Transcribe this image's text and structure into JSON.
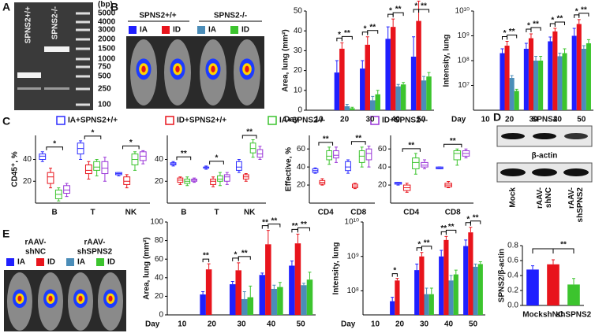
{
  "panel_labels": [
    "A",
    "B",
    "C",
    "D",
    "E"
  ],
  "gel": {
    "lanes": [
      "SPNS2+/+",
      "SPNS2-/-"
    ],
    "unit": "(bp)",
    "ladder": [
      "5000",
      "4000",
      "3000",
      "2000",
      "1500",
      "1000",
      "750",
      "500",
      "250",
      "100"
    ]
  },
  "imaging_b": {
    "groups": [
      "SPNS2+/+",
      "SPNS2-/-"
    ]
  },
  "imaging_e": {
    "groups": [
      [
        "rAAV-",
        "shNC"
      ],
      [
        "rAAV-",
        "shSPNS2"
      ]
    ]
  },
  "blot": {
    "title": "SPNS2",
    "loading": "β-actin",
    "lanes": [
      [
        "Mock"
      ],
      [
        "rAAV-",
        "shNC"
      ],
      [
        "rAAV-",
        "shSPNS2"
      ]
    ]
  },
  "chart_data": [
    {
      "type": "bar",
      "ylabel": "Area, lung (mm²)",
      "xlabel": "Day",
      "categories": [
        "10",
        "20",
        "30",
        "40",
        "50"
      ],
      "ylim": [
        0,
        50
      ],
      "yticks": [
        0,
        10,
        20,
        30,
        40,
        50
      ],
      "series": [
        {
          "name": "IA",
          "color": "#1f1fff",
          "values": [
            null,
            19,
            21,
            36,
            27
          ],
          "errors": [
            null,
            6,
            4,
            6,
            10
          ]
        },
        {
          "name": "ID",
          "color": "#e8141c",
          "values": [
            null,
            31,
            33,
            42,
            45
          ],
          "errors": [
            null,
            3,
            4,
            4,
            10
          ]
        },
        {
          "name": "IA",
          "color": "#4b8db8",
          "values": [
            null,
            2,
            5,
            12,
            15
          ],
          "errors": [
            null,
            1,
            2,
            1,
            2
          ]
        },
        {
          "name": "ID",
          "color": "#3cc42e",
          "values": [
            null,
            1,
            8,
            13,
            17
          ],
          "errors": [
            null,
            0.5,
            2,
            1,
            2
          ]
        }
      ],
      "significance": [
        [
          null,
          null
        ],
        [
          "*",
          "**"
        ],
        [
          "*",
          "**"
        ],
        [
          "*",
          "**"
        ],
        [
          "*",
          "**"
        ]
      ]
    },
    {
      "type": "bar",
      "ylabel": "Intensity, lung",
      "xlabel": "Day",
      "categories": [
        "10",
        "20",
        "30",
        "40",
        "50"
      ],
      "log_y": true,
      "ylim": [
        1000000,
        10000000000
      ],
      "yticks": [
        {
          "value": 10000000,
          "label": "10⁷"
        },
        {
          "value": 100000000,
          "label": "10⁸"
        },
        {
          "value": 1000000000,
          "label": "10⁹"
        },
        {
          "value": 10000000000,
          "label": "10¹⁰"
        }
      ],
      "series": [
        {
          "color": "#1f1fff",
          "values": [
            null,
            200000000,
            300000000,
            600000000,
            1000000000
          ],
          "errors": [
            null,
            100000000,
            200000000,
            300000000,
            1000000000
          ]
        },
        {
          "color": "#e8141c",
          "values": [
            null,
            400000000,
            800000000,
            1500000000,
            3000000000
          ],
          "errors": [
            null,
            200000000,
            400000000,
            500000000,
            1500000000
          ]
        },
        {
          "color": "#4b8db8",
          "values": [
            null,
            20000000,
            100000000,
            150000000,
            300000000
          ],
          "errors": [
            null,
            5000000,
            50000000,
            50000000,
            100000000
          ]
        },
        {
          "color": "#3cc42e",
          "values": [
            null,
            6000000,
            100000000,
            200000000,
            500000000
          ],
          "errors": [
            null,
            1000000,
            50000000,
            100000000,
            200000000
          ]
        }
      ],
      "significance": [
        [
          null,
          null
        ],
        [
          "*",
          "**"
        ],
        [
          "*",
          "**"
        ],
        [
          "*",
          "**"
        ],
        [
          "*",
          "**"
        ]
      ]
    },
    {
      "type": "box",
      "ylabel": "CD45⁺, %",
      "categories": [
        "B",
        "T",
        "NK"
      ],
      "ylim": [
        0,
        62
      ],
      "yticks": [
        20,
        40
      ],
      "series": [
        {
          "name": "IA+SPNS2+/+",
          "color": "#2b2bff",
          "values": [
            [
              38,
              40,
              43,
              45,
              47
            ],
            [
              40,
              45,
              50,
              55,
              57
            ],
            [
              25,
              26,
              27,
              28,
              28
            ]
          ]
        },
        {
          "name": "ID+SPNS2+/+",
          "color": "#e8141c",
          "values": [
            [
              14,
              18,
              24,
              28,
              32
            ],
            [
              22,
              27,
              30,
              35,
              38
            ],
            [
              14,
              17,
              20,
              24,
              26
            ]
          ]
        },
        {
          "name": "IA+SPNS2-/-",
          "color": "#3cc42e",
          "values": [
            [
              2,
              4,
              8,
              12,
              14
            ],
            [
              25,
              30,
              33,
              38,
              40
            ],
            [
              30,
              35,
              40,
              45,
              47
            ]
          ]
        },
        {
          "name": "ID+SPNS2-/-",
          "color": "#9a35d8",
          "values": [
            [
              6,
              9,
              12,
              16,
              18
            ],
            [
              20,
              27,
              32,
              38,
              42
            ],
            [
              36,
              39,
              43,
              47,
              48
            ]
          ]
        }
      ],
      "significance": [
        "*",
        "*",
        "*"
      ]
    },
    {
      "type": "box",
      "categories": [
        "B",
        "T",
        "NK"
      ],
      "ylim": [
        0,
        62
      ],
      "yticks": [
        20,
        40
      ],
      "series": [
        {
          "color": "#2b2bff",
          "values": [
            [
              34,
              35,
              36,
              37,
              38
            ],
            [
              31,
              32,
              33,
              33,
              34
            ],
            [
              28,
              30,
              33,
              38,
              40
            ]
          ]
        },
        {
          "color": "#e8141c",
          "values": [
            [
              17,
              19,
              21,
              23,
              24
            ],
            [
              15,
              17,
              20,
              22,
              24
            ],
            [
              20,
              22,
              24,
              26,
              27
            ]
          ]
        },
        {
          "color": "#3cc42e",
          "values": [
            [
              16,
              18,
              20,
              22,
              24
            ],
            [
              16,
              20,
              22,
              25,
              28
            ],
            [
              42,
              46,
              50,
              55,
              58
            ]
          ]
        },
        {
          "color": "#9a35d8",
          "values": [
            [
              19,
              20,
              21,
              22,
              23
            ],
            [
              17,
              20,
              24,
              26,
              28
            ],
            [
              40,
              42,
              45,
              49,
              52
            ]
          ]
        }
      ],
      "significance": [
        "**",
        "*",
        "**"
      ]
    },
    {
      "type": "box",
      "ylabel": "Effective, %",
      "categories": [
        "CD4",
        "CD8"
      ],
      "ylim": [
        0,
        75
      ],
      "yticks": [
        20,
        40,
        60
      ],
      "series": [
        {
          "color": "#2b2bff",
          "values": [
            [
              33,
              34,
              36,
              38,
              39
            ],
            [
              33,
              36,
              40,
              46,
              48
            ]
          ]
        },
        {
          "color": "#e8141c",
          "values": [
            [
              20,
              21,
              23,
              25,
              27
            ],
            [
              16,
              17,
              19,
              21,
              22
            ]
          ]
        },
        {
          "color": "#3cc42e",
          "values": [
            [
              43,
              48,
              52,
              58,
              62
            ],
            [
              40,
              45,
              52,
              58,
              62
            ]
          ]
        },
        {
          "color": "#9a35d8",
          "values": [
            [
              45,
              50,
              53,
              58,
              62
            ],
            [
              40,
              48,
              55,
              60,
              63
            ]
          ]
        }
      ],
      "significance": [
        "**",
        "**"
      ]
    },
    {
      "type": "box",
      "categories": [
        "CD4",
        "CD8"
      ],
      "ylim": [
        0,
        75
      ],
      "yticks": [
        20,
        40,
        60
      ],
      "series": [
        {
          "color": "#2b2bff",
          "values": [
            [
              20,
              21,
              22,
              23,
              23
            ],
            [
              38,
              38,
              39,
              40,
              40
            ]
          ]
        },
        {
          "color": "#e8141c",
          "values": [
            [
              12,
              14,
              17,
              20,
              22
            ],
            [
              17,
              18,
              20,
              22,
              24
            ]
          ]
        },
        {
          "color": "#3cc42e",
          "values": [
            [
              32,
              38,
              45,
              50,
              55
            ],
            [
              42,
              48,
              55,
              58,
              60
            ]
          ]
        },
        {
          "color": "#9a35d8",
          "values": [
            [
              38,
              40,
              42,
              45,
              48
            ],
            [
              50,
              52,
              55,
              58,
              60
            ]
          ]
        }
      ],
      "significance": [
        "**",
        "**"
      ]
    },
    {
      "type": "bar",
      "ylabel": "SPNS2/β-actin",
      "categories": [
        "Mock",
        "shNC",
        "shSPNS2"
      ],
      "ylim": [
        0,
        0.8
      ],
      "yticks": [
        {
          "value": 0,
          "label": "0.0"
        },
        0.2,
        0.4,
        0.6,
        0.8
      ],
      "series": [
        {
          "colors": [
            "#1f1fff",
            "#e8141c",
            "#3cc42e"
          ],
          "values": [
            0.48,
            0.55,
            0.28
          ],
          "errors": [
            0.05,
            0.06,
            0.08
          ]
        }
      ],
      "significance": "**"
    },
    {
      "type": "bar",
      "ylabel": "Area, lung (mm²)",
      "xlabel": "Day",
      "categories": [
        "10",
        "20",
        "30",
        "40",
        "50"
      ],
      "ylim": [
        0,
        100
      ],
      "yticks": [
        0,
        20,
        40,
        60,
        80,
        100
      ],
      "series": [
        {
          "name": "IA",
          "color": "#1f1fff",
          "values": [
            null,
            22,
            33,
            43,
            53
          ],
          "errors": [
            null,
            3,
            3,
            2,
            5
          ]
        },
        {
          "name": "ID",
          "color": "#e8141c",
          "values": [
            null,
            49,
            48,
            76,
            77
          ],
          "errors": [
            null,
            6,
            8,
            15,
            10
          ]
        },
        {
          "name": "IA",
          "color": "#4b8db8",
          "values": [
            null,
            null,
            17,
            28,
            32
          ],
          "errors": [
            null,
            null,
            8,
            4,
            2
          ]
        },
        {
          "name": "ID",
          "color": "#3cc42e",
          "values": [
            null,
            null,
            19,
            30,
            38
          ],
          "errors": [
            null,
            null,
            12,
            5,
            8
          ]
        }
      ],
      "significance": [
        [
          null,
          null
        ],
        [
          "**",
          null
        ],
        [
          "*",
          "**"
        ],
        [
          "**",
          "**"
        ],
        [
          "**",
          "**"
        ]
      ]
    },
    {
      "type": "bar",
      "ylabel": "Intensity, lung",
      "xlabel": "Day",
      "categories": [
        "10",
        "20",
        "30",
        "40",
        "50"
      ],
      "log_y": true,
      "ylim": [
        20000000,
        10000000000
      ],
      "yticks": [
        {
          "value": 100000000,
          "label": "10⁸"
        },
        {
          "value": 1000000000,
          "label": "10⁹"
        },
        {
          "value": 10000000000,
          "label": "10¹⁰"
        }
      ],
      "series": [
        {
          "color": "#1f1fff",
          "values": [
            null,
            50000000,
            400000000,
            1000000000,
            2000000000
          ],
          "errors": [
            null,
            15000000,
            200000000,
            500000000,
            1000000000
          ]
        },
        {
          "color": "#e8141c",
          "values": [
            null,
            200000000,
            1000000000,
            3000000000,
            5000000000
          ],
          "errors": [
            null,
            30000000,
            300000000,
            800000000,
            2000000000
          ]
        },
        {
          "color": "#4b8db8",
          "values": [
            null,
            null,
            80000000,
            200000000,
            500000000
          ],
          "errors": [
            null,
            null,
            40000000,
            80000000,
            100000000
          ]
        },
        {
          "color": "#3cc42e",
          "values": [
            null,
            null,
            80000000,
            300000000,
            600000000
          ],
          "errors": [
            null,
            null,
            40000000,
            100000000,
            100000000
          ]
        }
      ],
      "significance": [
        [
          null,
          null
        ],
        [
          "*",
          null
        ],
        [
          "*",
          "**"
        ],
        [
          "**",
          "**"
        ],
        [
          "*",
          "**"
        ]
      ]
    }
  ]
}
